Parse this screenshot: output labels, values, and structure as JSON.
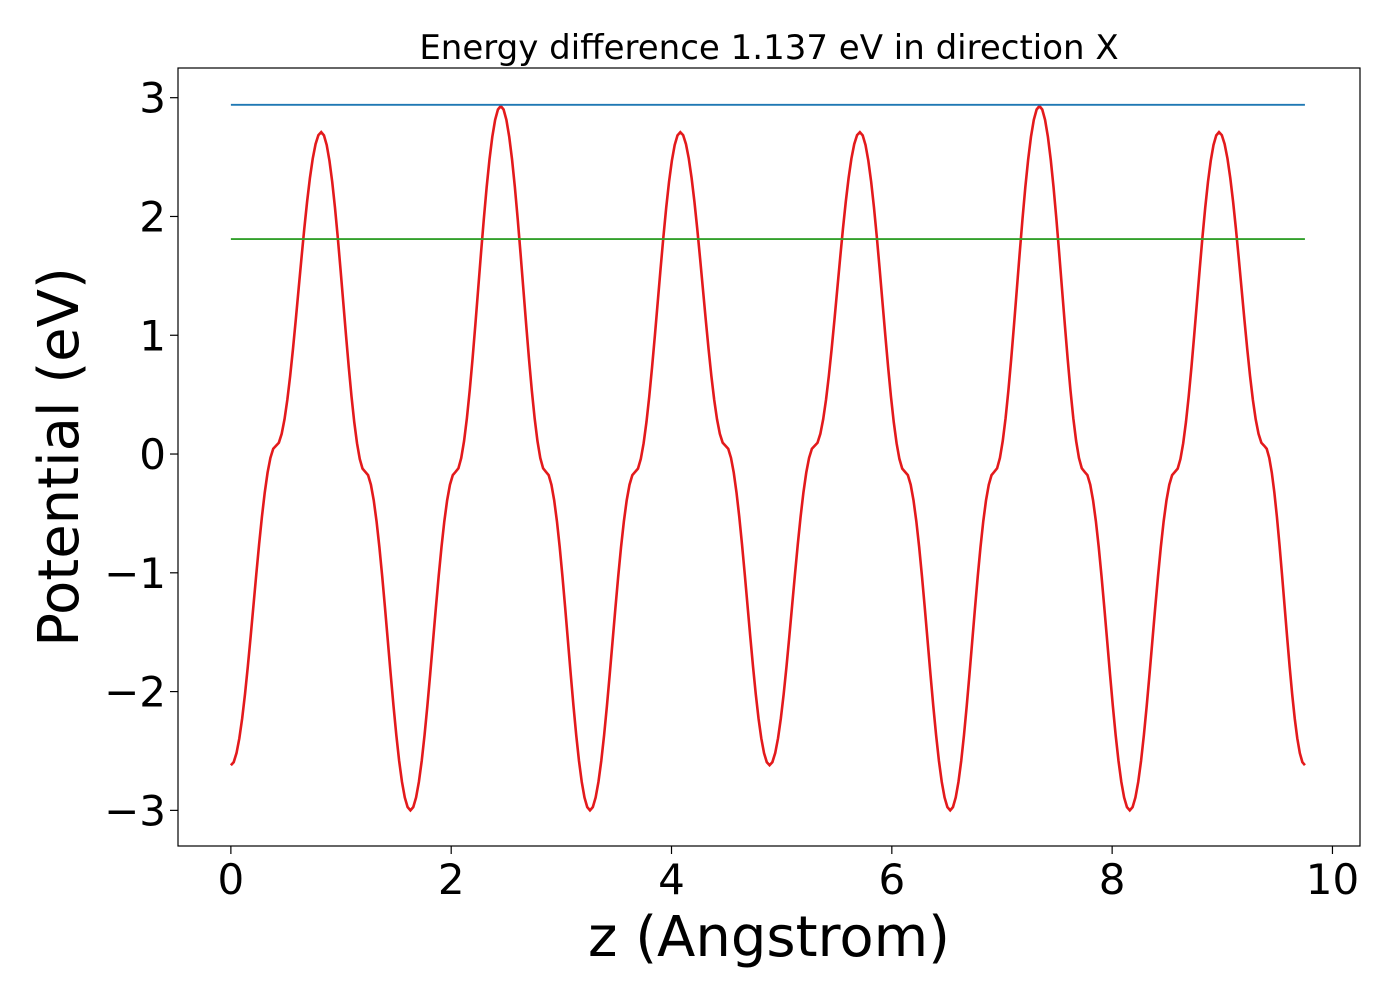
{
  "chart_data": {
    "type": "line",
    "title": "Energy difference 1.137 eV in direction X",
    "xlabel": "z (Angstrom)",
    "ylabel": "Potential (eV)",
    "xlim": [
      -0.48,
      10.25
    ],
    "ylim": [
      -3.3,
      3.25
    ],
    "xticks": [
      0,
      2,
      4,
      6,
      8,
      10
    ],
    "xtick_labels": [
      "0",
      "2",
      "4",
      "6",
      "8",
      "10"
    ],
    "yticks": [
      -3,
      -2,
      -1,
      0,
      1,
      2,
      3
    ],
    "ytick_labels": [
      "−3",
      "−2",
      "−1",
      "0",
      "1",
      "2",
      "3"
    ],
    "grid": false,
    "series": [
      {
        "color": "#e31a1c",
        "x": [
          0.0,
          0.41,
          0.82,
          1.22,
          1.63,
          2.04,
          2.45,
          2.86,
          3.26,
          3.67,
          4.08,
          4.49,
          4.89,
          5.3,
          5.71,
          6.12,
          6.53,
          6.93,
          7.34,
          7.75,
          8.16,
          8.57,
          8.97,
          9.38,
          9.75
        ],
        "y": [
          -2.62,
          0.07,
          2.71,
          -0.15,
          -3.0,
          -0.15,
          2.93,
          -0.15,
          -3.0,
          -0.15,
          2.71,
          0.07,
          -2.62,
          0.07,
          2.71,
          -0.15,
          -3.0,
          -0.15,
          2.93,
          -0.15,
          -3.0,
          -0.15,
          2.71,
          0.07,
          -2.62
        ]
      },
      {
        "color": "#1f78b4",
        "x": [
          0.0,
          9.75
        ],
        "y": [
          2.94,
          2.94
        ]
      },
      {
        "color": "#33a02c",
        "x": [
          0.0,
          9.75
        ],
        "y": [
          1.81,
          1.81
        ]
      }
    ]
  }
}
